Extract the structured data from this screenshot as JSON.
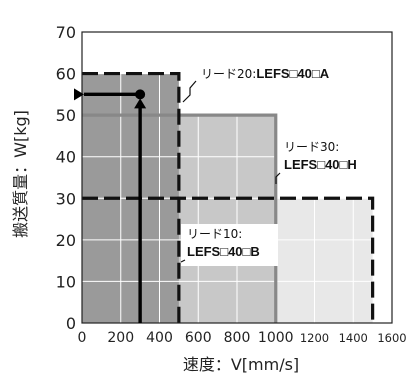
{
  "chart_data": {
    "type": "area",
    "xlabel": "速度：V[mm/s]",
    "ylabel": "搬送質量：W[kg]",
    "xlim": [
      0,
      1600
    ],
    "ylim": [
      0,
      70
    ],
    "x_ticks": [
      "0",
      "200",
      "400",
      "600",
      "800",
      "1000",
      "1200",
      "1400",
      "1600"
    ],
    "y_ticks": [
      "0",
      "10",
      "20",
      "30",
      "40",
      "50",
      "60",
      "70"
    ],
    "grid": true,
    "series": [
      {
        "key": "lead20",
        "label_line1": "リード20:",
        "label_line2": "LEFS□40□A",
        "points": [
          [
            0,
            60
          ],
          [
            500,
            60
          ],
          [
            500,
            0
          ]
        ],
        "line_style": "dashed",
        "fill": "#c8c8c8"
      },
      {
        "key": "lead30",
        "label_line1": "リード30:",
        "label_line2": "LEFS□40□H",
        "points": [
          [
            0,
            30
          ],
          [
            1500,
            30
          ],
          [
            1500,
            0
          ]
        ],
        "line_style": "dashed",
        "fill": "#e8e8e8"
      },
      {
        "key": "lead10",
        "label_line1": "リード10:",
        "label_line2": "LEFS□40□B",
        "points": [
          [
            0,
            50
          ],
          [
            1000,
            50
          ],
          [
            1000,
            0
          ]
        ],
        "line_style": "solid",
        "fill": "#d9d9d9"
      }
    ],
    "example_point": {
      "x": 300,
      "y": 55
    },
    "colors": {
      "lead20_region": "#9a9a9a",
      "lead10_region": "#c8c8c8",
      "lead30_region": "#e8e8e8",
      "grid": "#ffffff",
      "line": "#111111",
      "lead10_line": "#888888"
    }
  }
}
